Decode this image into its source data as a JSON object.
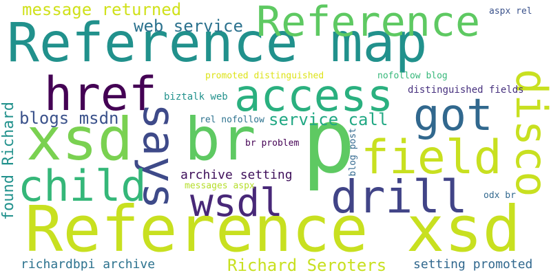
{
  "words": [
    {
      "text": "Reference map",
      "color": "#21918c"
    },
    {
      "text": "Reference xsd",
      "color": "#c8e020"
    },
    {
      "text": "xsd",
      "color": "#7ad151"
    },
    {
      "text": "br",
      "color": "#5ec962"
    },
    {
      "text": "p",
      "color": "#5ec962"
    },
    {
      "text": "Reference",
      "color": "#5ec962"
    },
    {
      "text": "href",
      "color": "#440154"
    },
    {
      "text": "access",
      "color": "#2ab07f"
    },
    {
      "text": "says",
      "color": "#3e4a89"
    },
    {
      "text": "field",
      "color": "#c8e020"
    },
    {
      "text": "disco",
      "color": "#c8e020"
    },
    {
      "text": "child",
      "color": "#35b779"
    },
    {
      "text": "drill",
      "color": "#414487"
    },
    {
      "text": "wsdl",
      "color": "#482878"
    },
    {
      "text": "got",
      "color": "#31688e"
    },
    {
      "text": "message returned",
      "color": "#d0e11c"
    },
    {
      "text": "web service",
      "color": "#2c728e"
    },
    {
      "text": "blogs msdn",
      "color": "#3b528b"
    },
    {
      "text": "service call",
      "color": "#22a884"
    },
    {
      "text": "found Richard",
      "color": "#21918c"
    },
    {
      "text": "archive setting",
      "color": "#3e0f5a"
    },
    {
      "text": "richardbpi archive",
      "color": "#2c728e"
    },
    {
      "text": "Richard Seroters",
      "color": "#c8e020"
    },
    {
      "text": "setting promoted",
      "color": "#31688e"
    },
    {
      "text": "distinguished fields",
      "color": "#46307e"
    },
    {
      "text": "promoted distinguished",
      "color": "#dde318"
    },
    {
      "text": "nofollow blog",
      "color": "#35b779"
    },
    {
      "text": "biztalk web",
      "color": "#21918c"
    },
    {
      "text": "rel nofollow",
      "color": "#2c728e"
    },
    {
      "text": "br problem",
      "color": "#440154"
    },
    {
      "text": "messages aspx",
      "color": "#b5de2b"
    },
    {
      "text": "blog post",
      "color": "#31688e"
    },
    {
      "text": "aspx rel",
      "color": "#3b528b"
    },
    {
      "text": "odx br",
      "color": "#31688e"
    }
  ]
}
